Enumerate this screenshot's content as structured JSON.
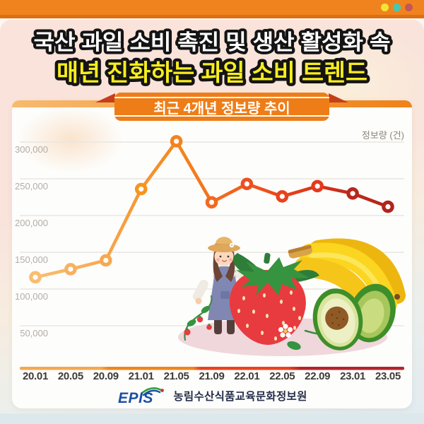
{
  "window": {
    "dot_colors": [
      "#F2E436",
      "#45C8B2",
      "#C2565B"
    ]
  },
  "title": {
    "line1": "국산 과일 소비 촉진 및 생산 활성화 속",
    "line2": "매년 진화하는 과일 소비 트렌드",
    "line1_color": "#FFFFFF",
    "line2_color": "#F8ED1E"
  },
  "chart_card": {
    "badge_label": "최근 4개년 정보량 추이"
  },
  "chart_data": {
    "type": "line",
    "title": "최근 4개년 정보량 추이",
    "x": [
      "20.01",
      "20.05",
      "20.09",
      "21.01",
      "21.05",
      "21.09",
      "22.01",
      "22.05",
      "22.09",
      "23.01",
      "23.05"
    ],
    "values": [
      116000,
      127000,
      139000,
      236000,
      301000,
      218000,
      243000,
      226000,
      240000,
      230000,
      212000
    ],
    "ylabel": "정보량 (건)",
    "ylim": [
      0,
      320000
    ],
    "yticks": [
      300000,
      250000,
      200000,
      150000,
      100000,
      50000
    ],
    "grid": "horizontal",
    "legend": "none",
    "line_gradient": [
      "#F9C177",
      "#F8AC55",
      "#F5871F",
      "#F0641E",
      "#E73E1B",
      "#C52B1B",
      "#AC2318"
    ],
    "point_colors": [
      "#F9BD72",
      "#F8B160",
      "#F7A84E",
      "#F7941D",
      "#F5821E",
      "#F26A1E",
      "#ED4F1D",
      "#E8421C",
      "#E5391B",
      "#B8271C",
      "#B2241A"
    ],
    "axis_gradient": [
      "#F4A94E",
      "#F0861C",
      "#E8431F",
      "#B5232A"
    ]
  },
  "footer": {
    "logo_text": "EPIS",
    "org_name": "농림수산식품교육문화정보원"
  }
}
